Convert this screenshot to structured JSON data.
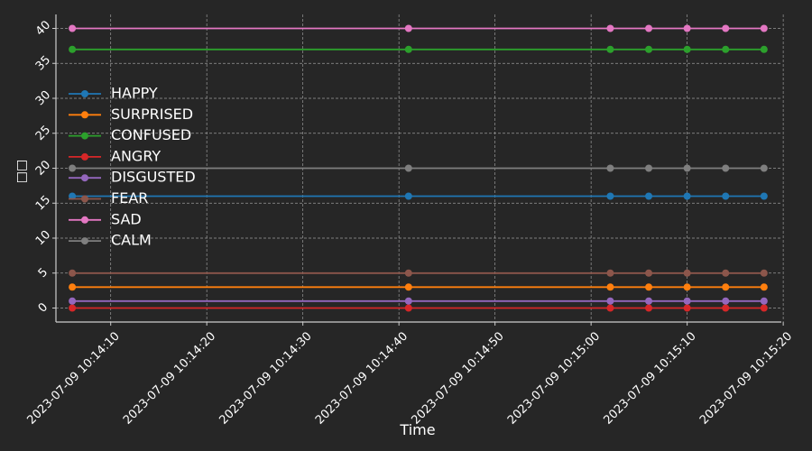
{
  "chart_data": {
    "type": "line",
    "title": "",
    "xlabel": "Time",
    "ylabel": "□□",
    "x_type": "datetime",
    "x": [
      "2023-07-09 10:14:06",
      "2023-07-09 10:14:41",
      "2023-07-09 10:15:02",
      "2023-07-09 10:15:06",
      "2023-07-09 10:15:10",
      "2023-07-09 10:15:14",
      "2023-07-09 10:15:18"
    ],
    "xlim": [
      "2023-07-09 10:14:04.3",
      "2023-07-09 10:15:19.8"
    ],
    "xticks": [
      "2023-07-09 10:14:10",
      "2023-07-09 10:14:20",
      "2023-07-09 10:14:30",
      "2023-07-09 10:14:40",
      "2023-07-09 10:14:50",
      "2023-07-09 10:15:00",
      "2023-07-09 10:15:10",
      "2023-07-09 10:15:20"
    ],
    "ylim": [
      -2,
      42
    ],
    "yticks": [
      0,
      5,
      10,
      15,
      20,
      25,
      30,
      35,
      40
    ],
    "grid": true,
    "legend_position": "center-left",
    "series": [
      {
        "name": "HAPPY",
        "color": "#1f77b4",
        "values": [
          16,
          16,
          16,
          16,
          16,
          16,
          16
        ]
      },
      {
        "name": "SURPRISED",
        "color": "#ff7f0e",
        "values": [
          3,
          3,
          3,
          3,
          3,
          3,
          3
        ]
      },
      {
        "name": "CONFUSED",
        "color": "#2ca02c",
        "values": [
          37,
          37,
          37,
          37,
          37,
          37,
          37
        ]
      },
      {
        "name": "ANGRY",
        "color": "#d62728",
        "values": [
          0,
          0,
          0,
          0,
          0,
          0,
          0
        ]
      },
      {
        "name": "DISGUSTED",
        "color": "#9467bd",
        "values": [
          1,
          1,
          1,
          1,
          1,
          1,
          1
        ]
      },
      {
        "name": "FEAR",
        "color": "#8c564b",
        "values": [
          5,
          5,
          5,
          5,
          5,
          5,
          5
        ]
      },
      {
        "name": "SAD",
        "color": "#e377c2",
        "values": [
          40,
          40,
          40,
          40,
          40,
          40,
          40
        ]
      },
      {
        "name": "CALM",
        "color": "#7f7f7f",
        "values": [
          20,
          20,
          20,
          20,
          20,
          20,
          20
        ]
      }
    ],
    "colors": {
      "background": "#262626",
      "axis": "#cccccc",
      "text": "#ffffff",
      "grid": "#9a9a9a"
    }
  }
}
